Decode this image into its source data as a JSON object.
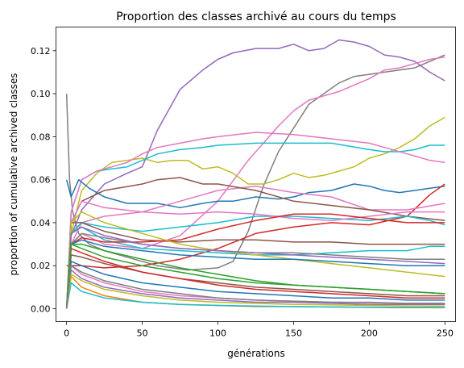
{
  "chart_data": {
    "type": "line",
    "title": "Proportion des classes archivé au cours du temps",
    "xlabel": "générations",
    "ylabel": "proportion of cumulative archived classes",
    "xlim": [
      -7,
      257
    ],
    "ylim": [
      -0.006,
      0.131
    ],
    "xticks": [
      0,
      50,
      100,
      150,
      200,
      250
    ],
    "yticks": [
      0.0,
      0.02,
      0.04,
      0.06,
      0.08,
      0.1,
      0.12
    ],
    "ytick_labels": [
      "0.00",
      "0.02",
      "0.04",
      "0.06",
      "0.08",
      "0.10",
      "0.12"
    ],
    "grid": false,
    "legend": "none",
    "series": [
      {
        "color": "#9467bd",
        "x": [
          0,
          3,
          10,
          25,
          40,
          50,
          60,
          75,
          90,
          100,
          110,
          125,
          140,
          150,
          160,
          170,
          180,
          190,
          200,
          210,
          220,
          230,
          240,
          250
        ],
        "y": [
          0.0,
          0.034,
          0.046,
          0.058,
          0.063,
          0.066,
          0.083,
          0.102,
          0.111,
          0.116,
          0.119,
          0.121,
          0.121,
          0.123,
          0.12,
          0.121,
          0.125,
          0.124,
          0.122,
          0.118,
          0.117,
          0.115,
          0.11,
          0.106
        ]
      },
      {
        "color": "#7f7f7f",
        "x": [
          0,
          1,
          2,
          4,
          8,
          15,
          25,
          40,
          60,
          80,
          100,
          110,
          120,
          130,
          140,
          150,
          160,
          170,
          180,
          190,
          200,
          210,
          220,
          230,
          240,
          250
        ],
        "y": [
          0.1,
          0.08,
          0.06,
          0.045,
          0.035,
          0.03,
          0.027,
          0.024,
          0.02,
          0.018,
          0.019,
          0.022,
          0.036,
          0.057,
          0.073,
          0.084,
          0.095,
          0.1,
          0.105,
          0.108,
          0.109,
          0.11,
          0.111,
          0.112,
          0.115,
          0.118
        ]
      },
      {
        "color": "#e377c2",
        "x": [
          0,
          3,
          10,
          25,
          50,
          75,
          100,
          120,
          140,
          150,
          160,
          170,
          180,
          190,
          200,
          210,
          220,
          230,
          240,
          250
        ],
        "y": [
          0.0,
          0.03,
          0.035,
          0.03,
          0.028,
          0.034,
          0.05,
          0.069,
          0.085,
          0.092,
          0.097,
          0.099,
          0.101,
          0.104,
          0.107,
          0.111,
          0.112,
          0.114,
          0.116,
          0.117
        ]
      },
      {
        "color": "#bcbd22",
        "x": [
          0,
          3,
          10,
          20,
          30,
          40,
          50,
          60,
          70,
          80,
          90,
          100,
          110,
          120,
          130,
          140,
          150,
          160,
          170,
          180,
          190,
          200,
          210,
          220,
          230,
          240,
          250
        ],
        "y": [
          0.0,
          0.035,
          0.055,
          0.063,
          0.068,
          0.069,
          0.07,
          0.068,
          0.069,
          0.069,
          0.065,
          0.066,
          0.063,
          0.058,
          0.058,
          0.06,
          0.063,
          0.061,
          0.062,
          0.064,
          0.066,
          0.07,
          0.072,
          0.075,
          0.079,
          0.085,
          0.089
        ]
      },
      {
        "color": "#17becf",
        "x": [
          0,
          3,
          10,
          20,
          30,
          40,
          50,
          60,
          75,
          90,
          100,
          125,
          150,
          175,
          200,
          210,
          220,
          230,
          240,
          250
        ],
        "y": [
          0.0,
          0.045,
          0.06,
          0.064,
          0.065,
          0.066,
          0.069,
          0.072,
          0.074,
          0.075,
          0.076,
          0.077,
          0.077,
          0.077,
          0.074,
          0.073,
          0.073,
          0.074,
          0.076,
          0.076
        ]
      },
      {
        "color": "#e377c2",
        "x": [
          0,
          3,
          10,
          20,
          30,
          40,
          50,
          60,
          75,
          90,
          100,
          125,
          150,
          175,
          200,
          210,
          220,
          230,
          240,
          250
        ],
        "y": [
          0.0,
          0.045,
          0.06,
          0.064,
          0.066,
          0.068,
          0.072,
          0.075,
          0.077,
          0.079,
          0.08,
          0.082,
          0.081,
          0.079,
          0.077,
          0.075,
          0.073,
          0.071,
          0.069,
          0.068
        ]
      },
      {
        "color": "#1f77b4",
        "x": [
          0,
          3,
          8,
          15,
          25,
          40,
          60,
          75,
          90,
          100,
          110,
          125,
          140,
          150,
          160,
          175,
          190,
          200,
          210,
          220,
          230,
          240,
          250
        ],
        "y": [
          0.06,
          0.052,
          0.06,
          0.056,
          0.052,
          0.049,
          0.049,
          0.047,
          0.049,
          0.05,
          0.05,
          0.052,
          0.051,
          0.052,
          0.054,
          0.055,
          0.058,
          0.057,
          0.055,
          0.054,
          0.055,
          0.056,
          0.057
        ]
      },
      {
        "color": "#d62728",
        "x": [
          0,
          10,
          25,
          50,
          75,
          100,
          125,
          150,
          175,
          200,
          225,
          240,
          250
        ],
        "y": [
          0.02,
          0.02,
          0.019,
          0.02,
          0.023,
          0.028,
          0.035,
          0.038,
          0.04,
          0.039,
          0.043,
          0.053,
          0.058
        ]
      },
      {
        "color": "#e377c2",
        "x": [
          0,
          3,
          10,
          25,
          50,
          75,
          100,
          125,
          150,
          175,
          200,
          225,
          250
        ],
        "y": [
          0.0,
          0.03,
          0.04,
          0.043,
          0.045,
          0.05,
          0.055,
          0.057,
          0.054,
          0.052,
          0.046,
          0.046,
          0.049
        ]
      },
      {
        "color": "#8c564b",
        "x": [
          0,
          3,
          10,
          25,
          50,
          60,
          75,
          90,
          100,
          125,
          150,
          175,
          200,
          225,
          250
        ],
        "y": [
          0.0,
          0.04,
          0.05,
          0.055,
          0.058,
          0.06,
          0.061,
          0.058,
          0.058,
          0.055,
          0.05,
          0.048,
          0.046,
          0.043,
          0.041
        ]
      },
      {
        "color": "#17becf",
        "x": [
          0,
          3,
          10,
          25,
          50,
          75,
          100,
          125,
          150,
          175,
          200,
          225,
          240,
          250
        ],
        "y": [
          0.0,
          0.035,
          0.04,
          0.038,
          0.036,
          0.038,
          0.04,
          0.043,
          0.043,
          0.042,
          0.041,
          0.043,
          0.041,
          0.039
        ]
      },
      {
        "color": "#e377c2",
        "x": [
          0,
          3,
          10,
          25,
          50,
          75,
          100,
          125,
          150,
          175,
          200,
          225,
          250
        ],
        "y": [
          0.0,
          0.04,
          0.05,
          0.047,
          0.045,
          0.044,
          0.045,
          0.044,
          0.042,
          0.041,
          0.043,
          0.045,
          0.045
        ]
      },
      {
        "color": "#8c564b",
        "x": [
          0,
          3,
          10,
          25,
          50,
          75,
          100,
          125,
          150,
          175,
          200,
          225,
          250
        ],
        "y": [
          0.0,
          0.04,
          0.04,
          0.036,
          0.032,
          0.031,
          0.032,
          0.032,
          0.031,
          0.031,
          0.03,
          0.03,
          0.03
        ]
      },
      {
        "color": "#17becf",
        "x": [
          0,
          3,
          10,
          25,
          50,
          75,
          100,
          125,
          150,
          175,
          200,
          225,
          240,
          250
        ],
        "y": [
          0.0,
          0.035,
          0.038,
          0.032,
          0.028,
          0.027,
          0.026,
          0.025,
          0.025,
          0.026,
          0.027,
          0.027,
          0.029,
          0.029
        ]
      },
      {
        "color": "#d62728",
        "x": [
          0,
          3,
          10,
          25,
          50,
          75,
          100,
          125,
          150,
          175,
          200,
          225,
          250
        ],
        "y": [
          0.0,
          0.03,
          0.033,
          0.031,
          0.031,
          0.032,
          0.037,
          0.041,
          0.044,
          0.044,
          0.042,
          0.04,
          0.04
        ]
      },
      {
        "color": "#7f7f7f",
        "x": [
          0,
          3,
          10,
          25,
          50,
          75,
          100,
          125,
          150,
          175,
          200,
          225,
          250
        ],
        "y": [
          0.0,
          0.03,
          0.035,
          0.033,
          0.03,
          0.028,
          0.027,
          0.026,
          0.026,
          0.025,
          0.024,
          0.023,
          0.023
        ]
      },
      {
        "color": "#bcbd22",
        "x": [
          0,
          3,
          10,
          25,
          50,
          75,
          100,
          125,
          150,
          175,
          200,
          225,
          250
        ],
        "y": [
          0.0,
          0.04,
          0.045,
          0.04,
          0.035,
          0.03,
          0.027,
          0.025,
          0.023,
          0.021,
          0.019,
          0.017,
          0.015
        ]
      },
      {
        "color": "#9467bd",
        "x": [
          0,
          3,
          10,
          25,
          50,
          75,
          100,
          125,
          150,
          175,
          200,
          225,
          250
        ],
        "y": [
          0.0,
          0.035,
          0.038,
          0.034,
          0.03,
          0.028,
          0.027,
          0.026,
          0.025,
          0.024,
          0.023,
          0.022,
          0.021
        ]
      },
      {
        "color": "#1f77b4",
        "x": [
          0,
          3,
          10,
          25,
          50,
          75,
          100,
          125,
          150,
          175,
          200,
          225,
          250
        ],
        "y": [
          0.0,
          0.03,
          0.032,
          0.029,
          0.027,
          0.025,
          0.024,
          0.023,
          0.023,
          0.022,
          0.021,
          0.02,
          0.02
        ]
      },
      {
        "color": "#2ca02c",
        "x": [
          0,
          3,
          10,
          25,
          50,
          75,
          100,
          125,
          150,
          175,
          200,
          225,
          250
        ],
        "y": [
          0.0,
          0.03,
          0.028,
          0.024,
          0.02,
          0.017,
          0.014,
          0.012,
          0.011,
          0.01,
          0.009,
          0.008,
          0.007
        ]
      },
      {
        "color": "#8c564b",
        "x": [
          0,
          3,
          10,
          25,
          50,
          75,
          100,
          125,
          150,
          175,
          200,
          225,
          250
        ],
        "y": [
          0.0,
          0.025,
          0.024,
          0.021,
          0.017,
          0.014,
          0.012,
          0.01,
          0.009,
          0.008,
          0.007,
          0.006,
          0.006
        ]
      },
      {
        "color": "#d62728",
        "x": [
          0,
          3,
          10,
          25,
          50,
          75,
          100,
          125,
          150,
          175,
          200,
          225,
          250
        ],
        "y": [
          0.0,
          0.028,
          0.026,
          0.022,
          0.017,
          0.014,
          0.011,
          0.009,
          0.008,
          0.007,
          0.006,
          0.005,
          0.005
        ]
      },
      {
        "color": "#1f77b4",
        "x": [
          0,
          3,
          10,
          25,
          50,
          75,
          100,
          125,
          150,
          175,
          200,
          225,
          250
        ],
        "y": [
          0.0,
          0.022,
          0.02,
          0.016,
          0.012,
          0.01,
          0.008,
          0.007,
          0.006,
          0.005,
          0.005,
          0.004,
          0.004
        ]
      },
      {
        "color": "#ff7f0e",
        "x": [
          0,
          3,
          10,
          25,
          50,
          75,
          100,
          125,
          150,
          175,
          200,
          225,
          250
        ],
        "y": [
          0.0,
          0.015,
          0.01,
          0.006,
          0.003,
          0.002,
          0.0015,
          0.001,
          0.001,
          0.0008,
          0.0006,
          0.0005,
          0.0005
        ]
      },
      {
        "color": "#9467bd",
        "x": [
          0,
          3,
          10,
          25,
          50,
          75,
          100,
          125,
          150,
          175,
          200,
          225,
          250
        ],
        "y": [
          0.0,
          0.018,
          0.014,
          0.01,
          0.007,
          0.005,
          0.004,
          0.003,
          0.003,
          0.0025,
          0.002,
          0.002,
          0.002
        ]
      },
      {
        "color": "#e377c2",
        "x": [
          0,
          3,
          10,
          25,
          50,
          75,
          100,
          125,
          150,
          175,
          200,
          225,
          250
        ],
        "y": [
          0.0,
          0.02,
          0.016,
          0.012,
          0.008,
          0.006,
          0.005,
          0.004,
          0.0035,
          0.003,
          0.003,
          0.0025,
          0.0025
        ]
      },
      {
        "color": "#17becf",
        "x": [
          0,
          3,
          10,
          25,
          50,
          75,
          100,
          125,
          150,
          175,
          200,
          225,
          250
        ],
        "y": [
          0.0,
          0.012,
          0.008,
          0.005,
          0.003,
          0.002,
          0.0015,
          0.0012,
          0.001,
          0.0008,
          0.0007,
          0.0006,
          0.0006
        ]
      },
      {
        "color": "#2ca02c",
        "x": [
          0,
          3,
          10,
          25,
          50,
          75,
          100,
          125,
          150,
          175,
          200,
          225,
          250
        ],
        "y": [
          0.0,
          0.03,
          0.03,
          0.027,
          0.023,
          0.019,
          0.016,
          0.013,
          0.011,
          0.01,
          0.009,
          0.008,
          0.007
        ]
      },
      {
        "color": "#bcbd22",
        "x": [
          0,
          3,
          10,
          25,
          50,
          75,
          100,
          125,
          150,
          175,
          200,
          225,
          250
        ],
        "y": [
          0.0,
          0.016,
          0.013,
          0.009,
          0.006,
          0.004,
          0.003,
          0.0025,
          0.002,
          0.0018,
          0.0015,
          0.0013,
          0.0012
        ]
      },
      {
        "color": "#7f7f7f",
        "x": [
          0,
          3,
          10,
          25,
          50,
          75,
          100,
          125,
          150,
          175,
          200,
          225,
          250
        ],
        "y": [
          0.0,
          0.02,
          0.017,
          0.013,
          0.009,
          0.007,
          0.005,
          0.004,
          0.0035,
          0.003,
          0.0028,
          0.0025,
          0.0025
        ]
      }
    ]
  }
}
